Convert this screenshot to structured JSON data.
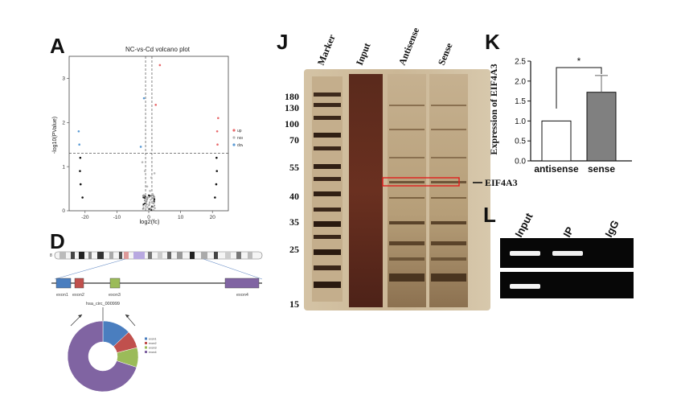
{
  "panels": {
    "A": {
      "letter": "A",
      "title": "NC-vs-Cd volcano plot",
      "xlabel": "log2(fc)",
      "ylabel": "-log10(PValue)",
      "x_ticks": [
        "-20",
        "-10",
        "0",
        "10",
        "20"
      ],
      "y_ticks": [
        "0",
        "1",
        "2",
        "3"
      ],
      "legend": [
        {
          "label": "up",
          "color": "#e8696b"
        },
        {
          "label": "nosig",
          "color": "#b8b8b8"
        },
        {
          "label": "down",
          "color": "#5b9bd5"
        }
      ]
    },
    "D": {
      "letter": "D",
      "chrom_label": "8",
      "exons": [
        "exon1",
        "exon2",
        "exon3",
        "exon4"
      ],
      "exon_colors": [
        "#4a7ebf",
        "#c0504d",
        "#9bbb59",
        "#8064a2"
      ],
      "circ_label": "hsa_circ_000999",
      "donut_legend": [
        "exon1",
        "exon2",
        "exon3",
        "exon4"
      ]
    },
    "J": {
      "letter": "J",
      "lanes": [
        "Marker",
        "Input",
        "Antisense",
        "Sense"
      ],
      "markers": [
        "180",
        "130",
        "100",
        "70",
        "55",
        "40",
        "35",
        "25",
        "15"
      ],
      "band_label": "EIF4A3"
    },
    "K": {
      "letter": "K",
      "ylabel": "Expression of EIF4A3",
      "y_ticks": [
        "0.0",
        "0.5",
        "1.0",
        "1.5",
        "2.0",
        "2.5"
      ],
      "categories": [
        "antisense",
        "sense"
      ],
      "significance": "*"
    },
    "L": {
      "letter": "L",
      "lanes": [
        "Input",
        "IP",
        "IgG"
      ]
    }
  },
  "chart_data": [
    {
      "type": "scatter",
      "title": "NC-vs-Cd volcano plot",
      "xlabel": "log2(fc)",
      "ylabel": "-log10(PValue)",
      "xlim": [
        -25,
        25
      ],
      "ylim": [
        0,
        3.5
      ],
      "series": [
        {
          "name": "up",
          "color": "#e8696b",
          "points": [
            [
              3.5,
              3.3
            ],
            [
              2.2,
              2.4
            ],
            [
              21.8,
              2.1
            ],
            [
              21.5,
              1.8
            ],
            [
              21.6,
              1.5
            ]
          ]
        },
        {
          "name": "down",
          "color": "#5b9bd5",
          "points": [
            [
              -22,
              1.8
            ],
            [
              -21.8,
              1.5
            ],
            [
              -1.5,
              2.55
            ],
            [
              -2.5,
              1.45
            ]
          ]
        },
        {
          "name": "nosig",
          "color": "#b8b8b8",
          "points": [
            [
              -2,
              1.1
            ],
            [
              -1.2,
              0.9
            ],
            [
              0.8,
              0.75
            ],
            [
              1.8,
              0.85
            ],
            [
              -0.5,
              0.55
            ],
            [
              0.4,
              0.45
            ],
            [
              1.2,
              0.38
            ],
            [
              -1.5,
              0.35
            ],
            [
              -0.2,
              0.3
            ],
            [
              0.6,
              0.25
            ],
            [
              1.5,
              0.22
            ],
            [
              -0.8,
              0.18
            ],
            [
              0.2,
              0.15
            ],
            [
              -1.7,
              0.12
            ],
            [
              1.0,
              0.1
            ],
            [
              -0.4,
              0.08
            ],
            [
              0.5,
              0.05
            ],
            [
              1.9,
              0.06
            ],
            [
              -1.0,
              0.04
            ]
          ]
        },
        {
          "name": "black",
          "color": "#111111",
          "points": [
            [
              -21.5,
              1.2
            ],
            [
              -21.6,
              0.9
            ],
            [
              -21.4,
              0.6
            ],
            [
              -20.8,
              0.3
            ],
            [
              20.8,
              0.3
            ],
            [
              21.2,
              0.6
            ],
            [
              21.4,
              0.9
            ],
            [
              21.3,
              1.2
            ]
          ]
        }
      ],
      "hline": 1.3,
      "vlines": [
        -1,
        1
      ]
    },
    {
      "type": "pie",
      "categories": [
        "exon1",
        "exon2",
        "exon3",
        "exon4"
      ],
      "values": [
        13,
        8,
        9,
        70
      ]
    },
    {
      "type": "bar",
      "categories": [
        "antisense",
        "sense"
      ],
      "values": [
        1.0,
        1.72
      ],
      "errors": [
        0,
        0.42
      ],
      "ylabel": "Expression of EIF4A3",
      "ylim": [
        0,
        2.5
      ]
    }
  ]
}
